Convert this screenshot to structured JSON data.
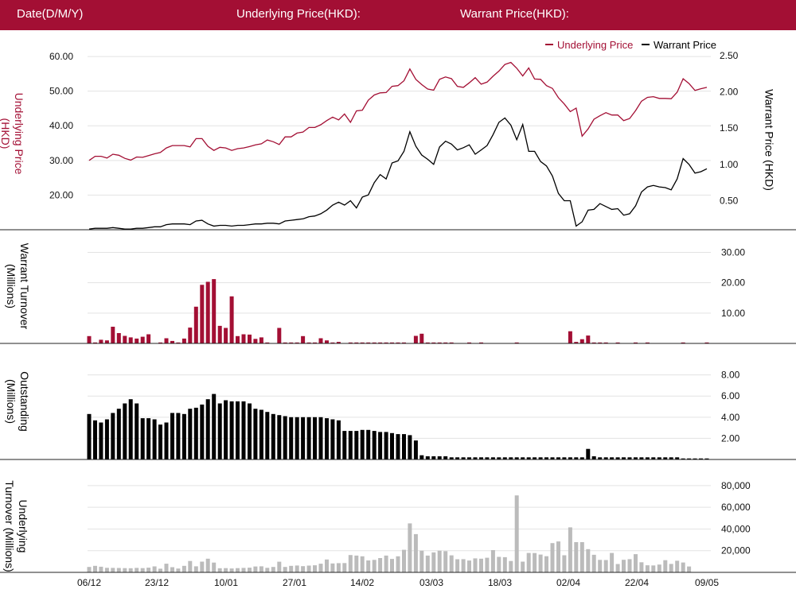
{
  "header": {
    "date_label": "Date(D/M/Y)",
    "underlying_label": "Underlying Price(HKD):",
    "warrant_label": "Warrant Price(HKD):"
  },
  "colors": {
    "header_bg": "#a30f34",
    "underlying": "#a30f34",
    "warrant": "#000000",
    "underlying_turnover": "#bbbbbb"
  },
  "chart_data": [
    {
      "type": "line",
      "legend_placement": "top-right",
      "grid": true,
      "x_ticks": [
        "06/12",
        "23/12",
        "10/01",
        "27/01",
        "14/02",
        "03/03",
        "18/03",
        "02/04",
        "22/04",
        "09/05"
      ],
      "series": [
        {
          "name": "Underlying Price",
          "axis": "left",
          "color": "#a30f34",
          "values": [
            30.0,
            31.2,
            31.2,
            30.7,
            31.8,
            31.5,
            30.6,
            30.1,
            31.0,
            30.9,
            31.4,
            31.9,
            32.3,
            33.6,
            34.3,
            34.3,
            34.3,
            33.9,
            36.3,
            36.3,
            34.1,
            32.9,
            33.8,
            33.6,
            32.9,
            33.4,
            33.6,
            34.0,
            34.5,
            34.8,
            35.9,
            35.4,
            34.6,
            36.8,
            36.8,
            37.9,
            38.2,
            39.5,
            39.5,
            40.3,
            41.5,
            42.5,
            41.7,
            43.4,
            41.0,
            44.3,
            44.5,
            47.4,
            48.9,
            49.5,
            49.6,
            51.4,
            51.6,
            53.0,
            56.4,
            53.4,
            51.9,
            50.6,
            50.3,
            53.4,
            54.1,
            53.6,
            51.4,
            51.1,
            52.4,
            53.9,
            52.0,
            52.6,
            54.3,
            55.8,
            57.7,
            58.3,
            56.6,
            54.4,
            56.7,
            53.5,
            53.4,
            51.6,
            50.8,
            48.1,
            46.3,
            44.1,
            45.1,
            37.0,
            39.1,
            41.9,
            42.9,
            43.8,
            43.1,
            43.1,
            41.5,
            42.1,
            44.4,
            47.1,
            48.2,
            48.4,
            47.9,
            47.9,
            47.8,
            49.7,
            53.6,
            52.2,
            50.2,
            50.7,
            51.1
          ]
        },
        {
          "name": "Warrant Price",
          "axis": "right",
          "color": "#000000",
          "values": [
            0.11,
            0.12,
            0.12,
            0.12,
            0.13,
            0.12,
            0.11,
            0.11,
            0.12,
            0.12,
            0.13,
            0.14,
            0.14,
            0.17,
            0.18,
            0.18,
            0.18,
            0.17,
            0.22,
            0.23,
            0.18,
            0.15,
            0.16,
            0.16,
            0.15,
            0.16,
            0.16,
            0.17,
            0.18,
            0.18,
            0.19,
            0.19,
            0.18,
            0.22,
            0.23,
            0.24,
            0.25,
            0.28,
            0.29,
            0.32,
            0.37,
            0.44,
            0.48,
            0.44,
            0.5,
            0.4,
            0.55,
            0.58,
            0.75,
            0.86,
            0.8,
            1.02,
            1.05,
            1.18,
            1.45,
            1.25,
            1.13,
            1.07,
            1.0,
            1.24,
            1.32,
            1.28,
            1.2,
            1.23,
            1.27,
            1.14,
            1.2,
            1.26,
            1.41,
            1.58,
            1.64,
            1.54,
            1.34,
            1.55,
            1.18,
            1.18,
            1.04,
            0.98,
            0.84,
            0.6,
            0.5,
            0.5,
            0.15,
            0.21,
            0.37,
            0.38,
            0.46,
            0.42,
            0.38,
            0.39,
            0.3,
            0.32,
            0.43,
            0.62,
            0.69,
            0.71,
            0.69,
            0.68,
            0.65,
            0.8,
            1.08,
            1.0,
            0.88,
            0.9,
            0.94
          ]
        }
      ],
      "y_left": {
        "label": "Underlying Price (HKD)",
        "ticks": [
          "20.00",
          "30.00",
          "40.00",
          "50.00",
          "60.00"
        ],
        "range": [
          10,
          63
        ]
      },
      "y_right": {
        "label": "Warrant  Price (HKD)",
        "ticks": [
          "0.50",
          "1.00",
          "1.50",
          "2.00",
          "2.50"
        ],
        "range": [
          0.1,
          2.63
        ]
      }
    },
    {
      "type": "bar",
      "y_label": "Warrant  Turnover (Millions)",
      "color": "#a30f34",
      "y_ticks": [
        "10.00",
        "20.00",
        "30.00"
      ],
      "range": [
        0,
        33
      ],
      "values": [
        2.4,
        0.3,
        1.2,
        1.0,
        5.5,
        3.4,
        2.5,
        2.0,
        1.6,
        2.2,
        3.0,
        0,
        0.3,
        1.7,
        0.8,
        0.3,
        1.6,
        5.2,
        12.1,
        19.3,
        20.3,
        21.2,
        5.8,
        5.1,
        15.5,
        2.4,
        3.0,
        2.9,
        1.5,
        2.0,
        0.2,
        0,
        5.1,
        0.2,
        0.2,
        0.2,
        2.4,
        0.2,
        0.3,
        1.7,
        1.0,
        0.3,
        0.5,
        0,
        0.2,
        0.2,
        0.2,
        0.2,
        0.2,
        0.2,
        0.2,
        0.2,
        0.2,
        0.2,
        0,
        2.5,
        3.2,
        0.3,
        0.2,
        0.3,
        0.3,
        0.2,
        0,
        0,
        0.2,
        0,
        0.3,
        0,
        0,
        0,
        0,
        0,
        0.3,
        0,
        0,
        0,
        0,
        0,
        0,
        0,
        0,
        4.0,
        0.5,
        1.4,
        2.6,
        0.3,
        0.2,
        0.2,
        0,
        0.2,
        0,
        0,
        0.2,
        0,
        0.2,
        0,
        0,
        0,
        0,
        0,
        0.2,
        0,
        0,
        0,
        0.2
      ]
    },
    {
      "type": "bar",
      "y_label": "Outstanding (Millions)",
      "color": "#000000",
      "y_ticks": [
        "2.00",
        "4.00",
        "6.00",
        "8.00"
      ],
      "range": [
        0,
        8.8
      ],
      "values": [
        4.3,
        3.7,
        3.5,
        3.8,
        4.4,
        4.8,
        5.3,
        5.7,
        5.3,
        3.9,
        3.9,
        3.8,
        3.3,
        3.5,
        4.4,
        4.4,
        4.3,
        4.8,
        4.9,
        5.2,
        5.7,
        6.2,
        5.3,
        5.6,
        5.5,
        5.5,
        5.5,
        5.3,
        4.8,
        4.7,
        4.5,
        4.3,
        4.2,
        4.1,
        4.0,
        4.0,
        4.0,
        4.0,
        4.0,
        4.0,
        3.9,
        3.8,
        3.7,
        2.7,
        2.7,
        2.7,
        2.8,
        2.8,
        2.7,
        2.6,
        2.6,
        2.5,
        2.4,
        2.4,
        2.3,
        1.8,
        0.4,
        0.3,
        0.3,
        0.3,
        0.3,
        0.2,
        0.2,
        0.2,
        0.2,
        0.2,
        0.2,
        0.2,
        0.2,
        0.2,
        0.2,
        0.2,
        0.2,
        0.2,
        0.2,
        0.2,
        0.2,
        0.2,
        0.2,
        0.2,
        0.2,
        0.2,
        0.2,
        0.2,
        1.0,
        0.3,
        0.2,
        0.2,
        0.2,
        0.2,
        0.2,
        0.2,
        0.2,
        0.2,
        0.2,
        0.2,
        0.2,
        0.2,
        0.2,
        0.2,
        0.1,
        0.1,
        0.1,
        0.1,
        0.1
      ]
    },
    {
      "type": "bar",
      "y_label": "Underlying Turnover (Millions)",
      "color": "#bbbbbb",
      "y_ticks": [
        "20,000",
        "40,000",
        "60,000",
        "80,000"
      ],
      "range": [
        0,
        88000
      ],
      "values": [
        5000,
        6000,
        5200,
        4200,
        4100,
        4000,
        3900,
        3800,
        4100,
        3900,
        4300,
        5500,
        3400,
        8000,
        4800,
        3500,
        6000,
        10500,
        5600,
        9900,
        12600,
        9000,
        3800,
        3900,
        3600,
        3900,
        4100,
        4300,
        5400,
        5600,
        4200,
        5000,
        9800,
        5000,
        6000,
        6300,
        5700,
        6200,
        6500,
        8000,
        11900,
        8200,
        8500,
        8600,
        16000,
        15500,
        14800,
        11000,
        11500,
        13200,
        15500,
        12400,
        14800,
        20800,
        45200,
        35300,
        20000,
        15500,
        18400,
        20000,
        19600,
        15700,
        12100,
        12200,
        10900,
        12900,
        12600,
        13500,
        20500,
        14300,
        14000,
        10500,
        71000,
        9900,
        17900,
        17800,
        16400,
        14900,
        27000,
        28500,
        15800,
        41500,
        27900,
        27900,
        21400,
        16200,
        11500,
        11400,
        17900,
        7700,
        11600,
        12200,
        16800,
        9300,
        6500,
        6400,
        7200,
        11200,
        7800,
        10700,
        9100,
        5400,
        0,
        0,
        0
      ]
    }
  ]
}
